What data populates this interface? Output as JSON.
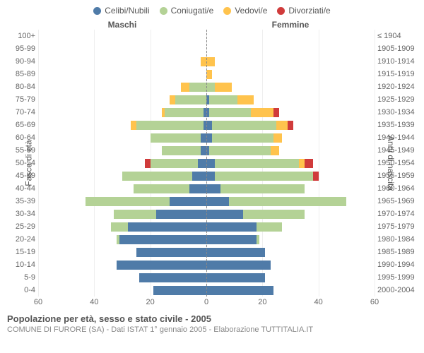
{
  "legend": [
    {
      "label": "Celibi/Nubili",
      "color": "#4f7ba8"
    },
    {
      "label": "Coniugati/e",
      "color": "#b4d296"
    },
    {
      "label": "Vedovi/e",
      "color": "#ffc34d"
    },
    {
      "label": "Divorziati/e",
      "color": "#d03b3b"
    }
  ],
  "headers": {
    "male": "Maschi",
    "female": "Femmine"
  },
  "y_left_label": "Fasce di età",
  "y_right_label": "Anni di nascita",
  "age_groups": [
    "100+",
    "95-99",
    "90-94",
    "85-89",
    "80-84",
    "75-79",
    "70-74",
    "65-69",
    "60-64",
    "55-59",
    "50-54",
    "45-49",
    "40-44",
    "35-39",
    "30-34",
    "25-29",
    "20-24",
    "15-19",
    "10-14",
    "5-9",
    "0-4"
  ],
  "birth_years": [
    "≤ 1904",
    "1905-1909",
    "1910-1914",
    "1915-1919",
    "1920-1924",
    "1925-1929",
    "1930-1934",
    "1935-1939",
    "1940-1944",
    "1945-1949",
    "1950-1954",
    "1955-1959",
    "1960-1964",
    "1965-1969",
    "1970-1974",
    "1975-1979",
    "1980-1984",
    "1985-1989",
    "1990-1994",
    "1995-1999",
    "2000-2004"
  ],
  "x_ticks": [
    60,
    40,
    20,
    0,
    20,
    40,
    60
  ],
  "x_max": 60,
  "colors": {
    "celibi": "#4f7ba8",
    "coniugati": "#b4d296",
    "vedovi": "#ffc34d",
    "divorziati": "#d03b3b",
    "grid": "#eeeeee",
    "centerline": "#888888"
  },
  "data": {
    "male": [
      {
        "c": 0,
        "m": 0,
        "w": 0,
        "d": 0
      },
      {
        "c": 0,
        "m": 0,
        "w": 0,
        "d": 0
      },
      {
        "c": 0,
        "m": 0,
        "w": 2,
        "d": 0
      },
      {
        "c": 0,
        "m": 0,
        "w": 0,
        "d": 0
      },
      {
        "c": 0,
        "m": 6,
        "w": 3,
        "d": 0
      },
      {
        "c": 0,
        "m": 11,
        "w": 2,
        "d": 0
      },
      {
        "c": 1,
        "m": 14,
        "w": 1,
        "d": 0
      },
      {
        "c": 1,
        "m": 24,
        "w": 2,
        "d": 0
      },
      {
        "c": 2,
        "m": 18,
        "w": 0,
        "d": 0
      },
      {
        "c": 2,
        "m": 14,
        "w": 0,
        "d": 0
      },
      {
        "c": 3,
        "m": 17,
        "w": 0,
        "d": 2
      },
      {
        "c": 5,
        "m": 25,
        "w": 0,
        "d": 0
      },
      {
        "c": 6,
        "m": 20,
        "w": 0,
        "d": 0
      },
      {
        "c": 13,
        "m": 30,
        "w": 0,
        "d": 0
      },
      {
        "c": 18,
        "m": 15,
        "w": 0,
        "d": 0
      },
      {
        "c": 28,
        "m": 6,
        "w": 0,
        "d": 0
      },
      {
        "c": 31,
        "m": 1,
        "w": 0,
        "d": 0
      },
      {
        "c": 25,
        "m": 0,
        "w": 0,
        "d": 0
      },
      {
        "c": 32,
        "m": 0,
        "w": 0,
        "d": 0
      },
      {
        "c": 24,
        "m": 0,
        "w": 0,
        "d": 0
      },
      {
        "c": 19,
        "m": 0,
        "w": 0,
        "d": 0
      }
    ],
    "female": [
      {
        "c": 0,
        "m": 0,
        "w": 0,
        "d": 0
      },
      {
        "c": 0,
        "m": 0,
        "w": 0,
        "d": 0
      },
      {
        "c": 0,
        "m": 0,
        "w": 3,
        "d": 0
      },
      {
        "c": 0,
        "m": 0,
        "w": 2,
        "d": 0
      },
      {
        "c": 0,
        "m": 3,
        "w": 6,
        "d": 0
      },
      {
        "c": 1,
        "m": 10,
        "w": 6,
        "d": 0
      },
      {
        "c": 1,
        "m": 15,
        "w": 8,
        "d": 2
      },
      {
        "c": 2,
        "m": 23,
        "w": 4,
        "d": 2
      },
      {
        "c": 2,
        "m": 22,
        "w": 3,
        "d": 0
      },
      {
        "c": 1,
        "m": 22,
        "w": 3,
        "d": 0
      },
      {
        "c": 3,
        "m": 30,
        "w": 2,
        "d": 3
      },
      {
        "c": 3,
        "m": 35,
        "w": 0,
        "d": 2
      },
      {
        "c": 5,
        "m": 30,
        "w": 0,
        "d": 0
      },
      {
        "c": 8,
        "m": 42,
        "w": 0,
        "d": 0
      },
      {
        "c": 13,
        "m": 22,
        "w": 0,
        "d": 0
      },
      {
        "c": 18,
        "m": 9,
        "w": 0,
        "d": 0
      },
      {
        "c": 18,
        "m": 1,
        "w": 0,
        "d": 0
      },
      {
        "c": 21,
        "m": 0,
        "w": 0,
        "d": 0
      },
      {
        "c": 23,
        "m": 0,
        "w": 0,
        "d": 0
      },
      {
        "c": 21,
        "m": 0,
        "w": 0,
        "d": 0
      },
      {
        "c": 24,
        "m": 0,
        "w": 0,
        "d": 0
      }
    ]
  },
  "title": "Popolazione per età, sesso e stato civile - 2005",
  "subtitle": "COMUNE DI FURORE (SA) - Dati ISTAT 1° gennaio 2005 - Elaborazione TUTTITALIA.IT"
}
